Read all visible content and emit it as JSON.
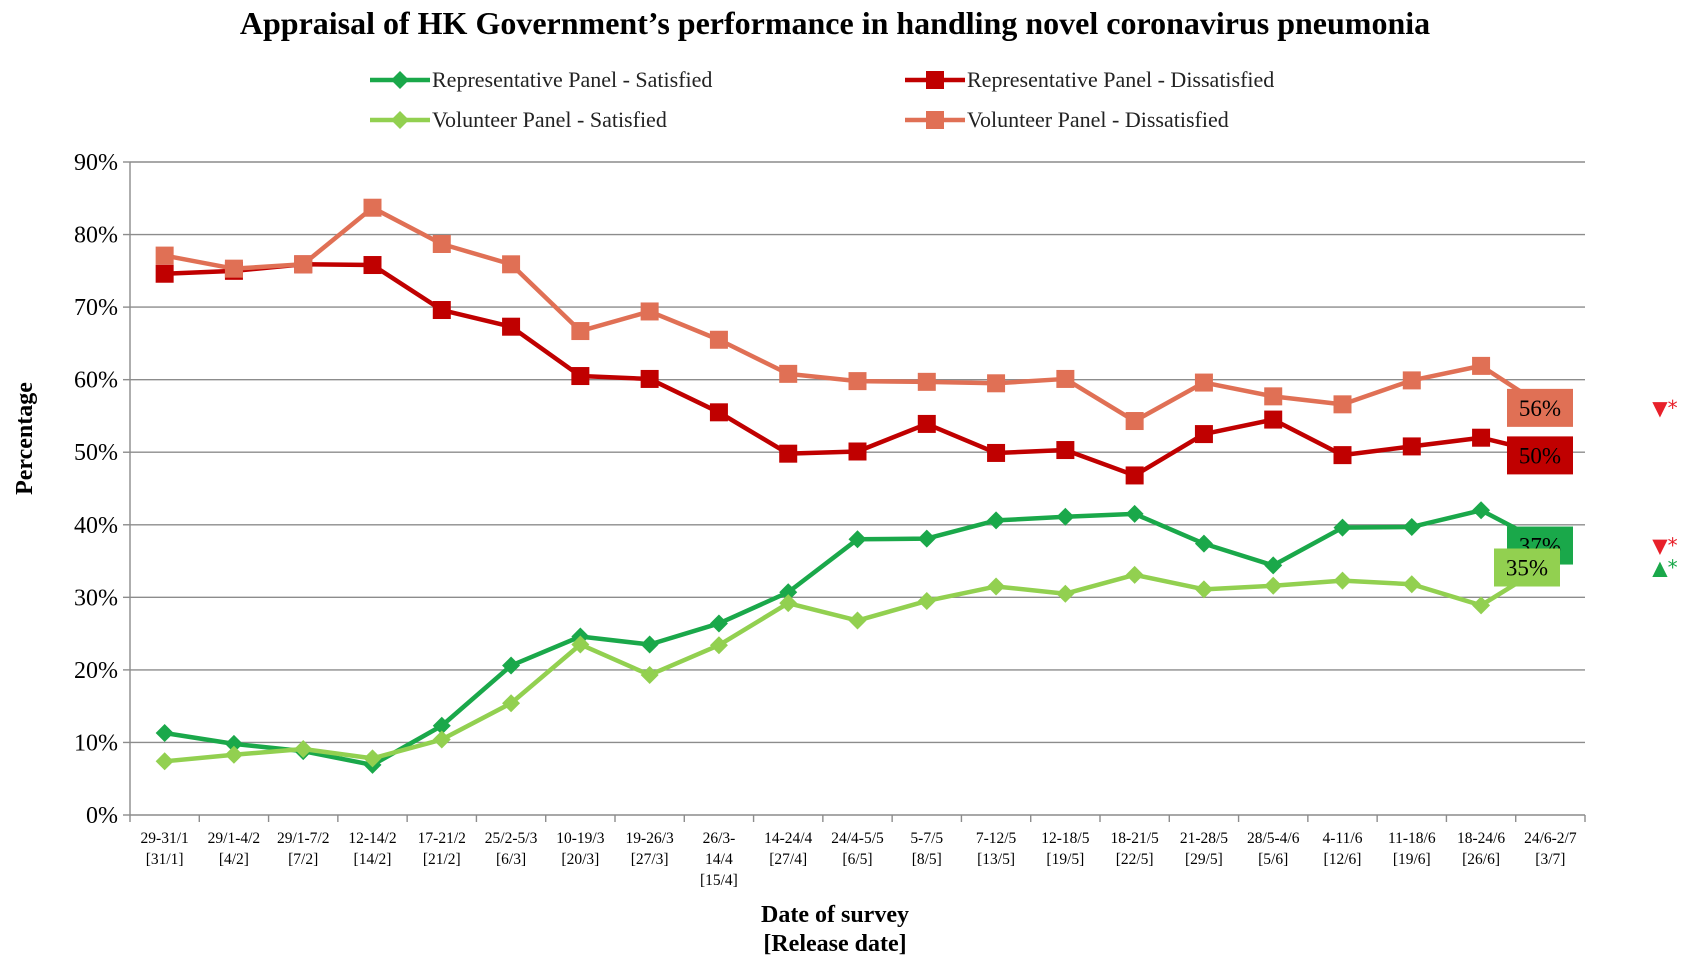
{
  "chart_data": {
    "type": "line",
    "title": "Appraisal of HK Government’s performance in handling novel coronavirus pneumonia",
    "xlabel": [
      "Date of survey",
      "[Release date]"
    ],
    "ylabel": "Percentage",
    "ylim": [
      0,
      90
    ],
    "yticks": [
      0,
      10,
      20,
      30,
      40,
      50,
      60,
      70,
      80,
      90
    ],
    "ytick_labels": [
      "0%",
      "10%",
      "20%",
      "30%",
      "40%",
      "50%",
      "60%",
      "70%",
      "80%",
      "90%"
    ],
    "grid": true,
    "legend_position": "top",
    "categories": [
      [
        "29-31/1",
        "[31/1]"
      ],
      [
        "29/1-4/2",
        "[4/2]"
      ],
      [
        "29/1-7/2",
        "[7/2]"
      ],
      [
        "12-14/2",
        "[14/2]"
      ],
      [
        "17-21/2",
        "[21/2]"
      ],
      [
        "25/2-5/3",
        "[6/3]"
      ],
      [
        "10-19/3",
        "[20/3]"
      ],
      [
        "19-26/3",
        "[27/3]"
      ],
      [
        "26/3-",
        "14/4",
        "[15/4]"
      ],
      [
        "14-24/4",
        "[27/4]"
      ],
      [
        "24/4-5/5",
        "[6/5]"
      ],
      [
        "5-7/5",
        "[8/5]"
      ],
      [
        "7-12/5",
        "[13/5]"
      ],
      [
        "12-18/5",
        "[19/5]"
      ],
      [
        "18-21/5",
        "[22/5]"
      ],
      [
        "21-28/5",
        "[29/5]"
      ],
      [
        "28/5-4/6",
        "[5/6]"
      ],
      [
        "4-11/6",
        "[12/6]"
      ],
      [
        "11-18/6",
        "[19/6]"
      ],
      [
        "18-24/6",
        "[26/6]"
      ],
      [
        "24/6-2/7",
        "[3/7]"
      ]
    ],
    "series": [
      {
        "name": "Representative Panel - Satisfied",
        "color": "#1aa84a",
        "marker": "diamond",
        "values": [
          11.3,
          9.8,
          8.8,
          6.9,
          12.3,
          20.6,
          24.6,
          23.5,
          26.4,
          30.7,
          38.0,
          38.1,
          40.6,
          41.1,
          41.5,
          37.4,
          34.4,
          39.6,
          39.7,
          42.0,
          37.0
        ],
        "end_label": "37%",
        "end_label_bg": "#1aa84a",
        "end_label_color": "#000000",
        "end_marker": "▼*",
        "end_marker_color": "#e8202a"
      },
      {
        "name": "Representative Panel - Dissatisfied",
        "color": "#c00000",
        "marker": "square",
        "values": [
          74.6,
          75.0,
          75.9,
          75.8,
          69.6,
          67.3,
          60.5,
          60.1,
          55.5,
          49.8,
          50.1,
          53.9,
          49.9,
          50.3,
          46.8,
          52.5,
          54.5,
          49.6,
          50.8,
          52.0,
          49.7
        ],
        "end_label": "50%",
        "end_label_bg": "#c00000",
        "end_label_color": "#000000",
        "end_marker": "",
        "end_marker_color": ""
      },
      {
        "name": "Volunteer Panel - Satisfied",
        "color": "#92d050",
        "marker": "diamond",
        "values": [
          7.4,
          8.3,
          9.1,
          7.8,
          10.4,
          15.4,
          23.5,
          19.3,
          23.4,
          29.2,
          26.8,
          29.5,
          31.5,
          30.5,
          33.1,
          31.1,
          31.6,
          32.3,
          31.8,
          28.9,
          34.8
        ],
        "end_label": "35%",
        "end_label_bg": "#92d050",
        "end_label_color": "#000000",
        "end_marker": "▲*",
        "end_marker_color": "#1aa84a"
      },
      {
        "name": "Volunteer Panel - Dissatisfied",
        "color": "#e07055",
        "marker": "square",
        "values": [
          77.1,
          75.3,
          75.9,
          83.7,
          78.7,
          75.9,
          66.7,
          69.4,
          65.5,
          60.8,
          59.8,
          59.7,
          59.5,
          60.1,
          54.3,
          59.6,
          57.7,
          56.6,
          59.9,
          61.9,
          55.7
        ],
        "end_label": "56%",
        "end_label_bg": "#e07055",
        "end_label_color": "#000000",
        "end_marker": "▼*",
        "end_marker_color": "#e8202a"
      }
    ]
  }
}
